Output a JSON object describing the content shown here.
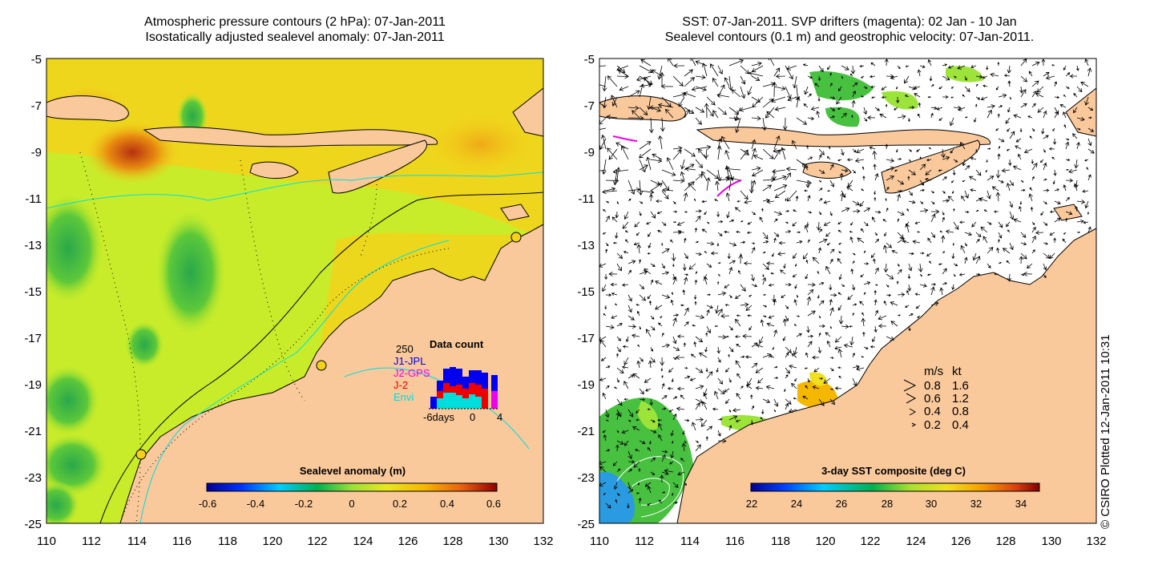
{
  "left_panel": {
    "title_line1": "Atmospheric pressure contours (2 hPa): 07-Jan-2011",
    "title_line2": "Isostatically adjusted sealevel anomaly: 07-Jan-2011",
    "y_ticks": [
      "-5",
      "-7",
      "-9",
      "-11",
      "-13",
      "-15",
      "-17",
      "-19",
      "-21",
      "-23",
      "-25"
    ],
    "x_ticks": [
      "110",
      "112",
      "114",
      "116",
      "118",
      "120",
      "122",
      "124",
      "126",
      "128",
      "130",
      "132"
    ],
    "colorbar": {
      "label": "Sealevel anomaly (m)",
      "ticks": [
        "-0.6",
        "-0.4",
        "-0.2",
        "0",
        "0.2",
        "0.4",
        "0.6"
      ]
    },
    "data_count": {
      "max_label": "250",
      "title": "Data count",
      "legend": [
        {
          "label": "J1-JPL",
          "color": "#0000ee"
        },
        {
          "label": "J2-GPS",
          "color": "#ee00ee"
        },
        {
          "label": "J-2",
          "color": "#ee0000"
        },
        {
          "label": "Envi",
          "color": "#00dddd"
        }
      ],
      "x_left": "-6days",
      "x_mid": "0",
      "x_right": "4"
    }
  },
  "right_panel": {
    "title_line1": "SST: 07-Jan-2011. SVP drifters (magenta): 02 Jan - 10 Jan",
    "title_line2": "Sealevel contours (0.1 m) and geostrophic velocity: 07-Jan-2011.",
    "y_ticks": [
      "-5",
      "-7",
      "-9",
      "-11",
      "-13",
      "-15",
      "-17",
      "-19",
      "-21",
      "-23",
      "-25"
    ],
    "x_ticks": [
      "110",
      "112",
      "114",
      "116",
      "118",
      "120",
      "122",
      "124",
      "126",
      "128",
      "130",
      "132"
    ],
    "colorbar": {
      "label": "3-day SST composite (deg C)",
      "ticks": [
        "22",
        "24",
        "26",
        "28",
        "30",
        "32",
        "34"
      ]
    },
    "velocity_key": {
      "header_ms": "m/s",
      "header_kt": "kt",
      "rows": [
        {
          "ms": "0.8",
          "kt": "1.6"
        },
        {
          "ms": "0.6",
          "kt": "1.2"
        },
        {
          "ms": "0.4",
          "kt": "0.8"
        },
        {
          "ms": "0.2",
          "kt": "0.4"
        }
      ]
    }
  },
  "credit": "© CSIRO Plotted 12-Jan-2011 10:31",
  "colors": {
    "land": "#f9c89b",
    "ocean_base": "#c8ec2a",
    "ocean_warm": "#f5d21a",
    "ocean_hot": "#e88a10",
    "ocean_low": "#3cb84a",
    "bathymetry": "#00e0e0",
    "drifter": "#ee00ee"
  }
}
